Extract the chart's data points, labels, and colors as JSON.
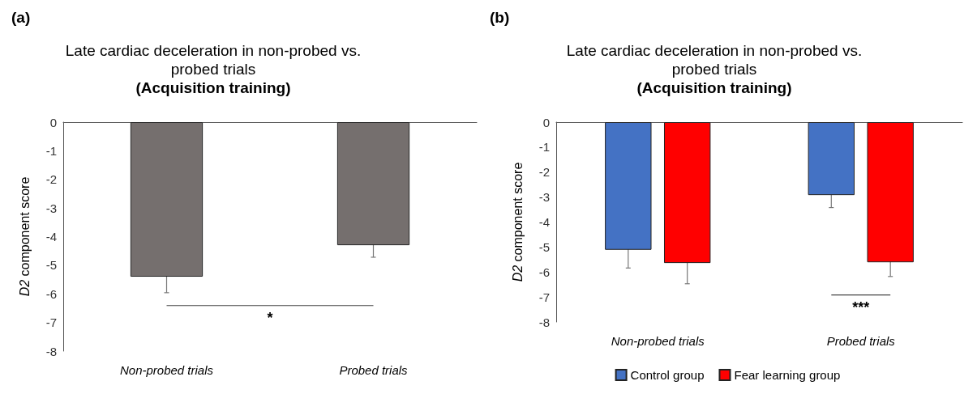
{
  "chart_data": [
    {
      "type": "bar",
      "title": "Late cardiac deceleration in non-probed vs.\nprobed trials",
      "subtitle": "(Acquisition training)",
      "ylabel": "D2 component score",
      "categories": [
        "Non-probed trials",
        "Probed trials"
      ],
      "values": [
        -5.4,
        -4.3
      ],
      "errors": [
        0.56,
        0.42
      ],
      "color": "#756f6e",
      "ylim": [
        -8,
        0
      ],
      "yticks": [
        -8,
        -7,
        -6,
        -5,
        -4,
        -3,
        -2,
        -1,
        0
      ],
      "grid": false,
      "annotations": [
        "(a)",
        "*"
      ]
    },
    {
      "type": "bar",
      "title": "Late cardiac deceleration in non-probed vs.\nprobed trials",
      "subtitle": "(Acquisition training)",
      "ylabel": "D2 component score",
      "categories": [
        "Non-probed trials",
        "Probed trials"
      ],
      "series": [
        {
          "name": "Control group",
          "color": "#4472c4",
          "values": [
            -5.11,
            -2.92
          ],
          "errors": [
            0.73,
            0.5
          ]
        },
        {
          "name": "Fear learning group",
          "color": "#ff0000",
          "values": [
            -5.64,
            -5.61
          ],
          "errors": [
            0.83,
            0.57
          ]
        }
      ],
      "ylim": [
        -8,
        0
      ],
      "yticks": [
        -8,
        -7,
        -6,
        -5,
        -4,
        -3,
        -2,
        -1,
        0
      ],
      "grid": false,
      "legend": "bottom",
      "annotations": [
        "(b)",
        "***"
      ]
    }
  ]
}
